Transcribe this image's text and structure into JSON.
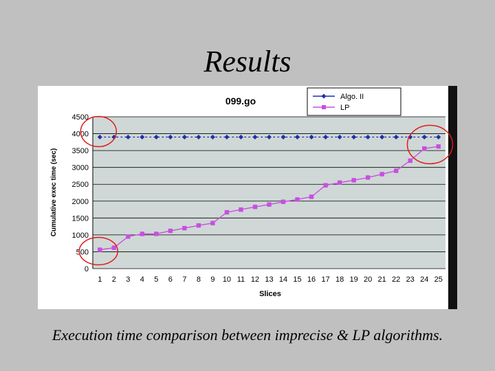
{
  "slide": {
    "title": "Results",
    "caption": "Execution time comparison between imprecise & LP algorithms."
  },
  "colors": {
    "background": "#c0c0c0",
    "plot_area": "#cfd8d6",
    "algo_series": "#1f2fa8",
    "lp_series": "#c84fe0",
    "highlight_circle": "#e01a1a",
    "right_band": "#111111"
  },
  "chart_data": {
    "type": "line",
    "title": "099.go",
    "xlabel": "Slices",
    "ylabel": "Cumulative exec time (sec)",
    "categories": [
      "1",
      "2",
      "3",
      "4",
      "5",
      "6",
      "7",
      "8",
      "9",
      "10",
      "11",
      "12",
      "13",
      "14",
      "15",
      "16",
      "17",
      "18",
      "19",
      "20",
      "21",
      "22",
      "23",
      "24",
      "25"
    ],
    "ylim": [
      0,
      4500
    ],
    "yticks": [
      "0",
      "500",
      "1000",
      "1500",
      "2000",
      "2500",
      "3000",
      "3500",
      "4000",
      "4500"
    ],
    "grid": true,
    "legend_position": "top-right",
    "series": [
      {
        "name": "Algo. II",
        "marker": "diamond",
        "values": [
          3900,
          3900,
          3900,
          3900,
          3900,
          3900,
          3900,
          3900,
          3900,
          3900,
          3900,
          3900,
          3900,
          3900,
          3900,
          3900,
          3900,
          3900,
          3900,
          3900,
          3900,
          3900,
          3900,
          3900,
          3900
        ]
      },
      {
        "name": "LP",
        "marker": "square",
        "values": [
          560,
          620,
          950,
          1030,
          1030,
          1120,
          1200,
          1280,
          1350,
          1670,
          1750,
          1830,
          1900,
          1980,
          2050,
          2130,
          2470,
          2550,
          2620,
          2700,
          2800,
          2900,
          3200,
          3560,
          3620
        ]
      }
    ],
    "annotations": [
      {
        "type": "circle",
        "around": "Algo. II at slice 1"
      },
      {
        "type": "circle",
        "around": "LP at slice 1"
      },
      {
        "type": "circle",
        "around": "slices 24-25 at top"
      }
    ]
  }
}
